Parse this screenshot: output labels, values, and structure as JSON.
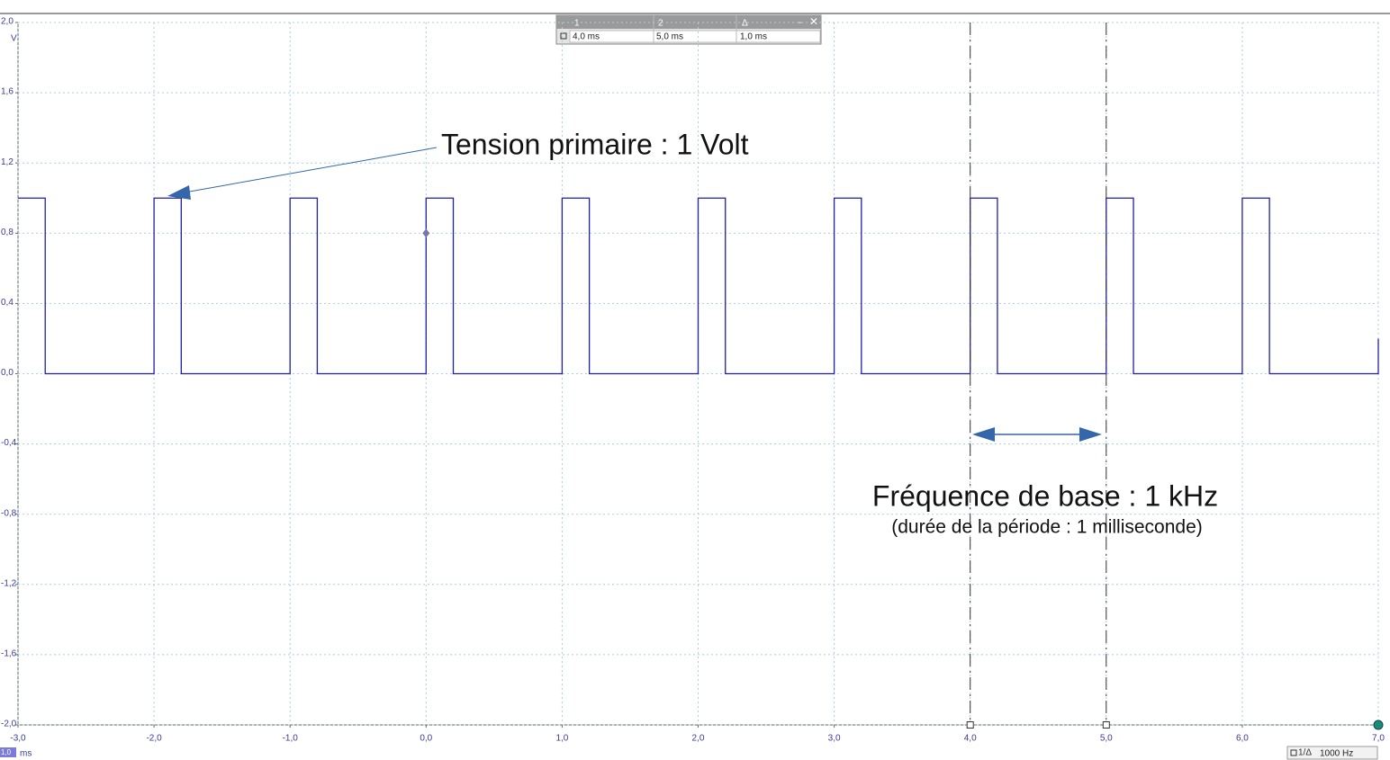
{
  "chart_data": {
    "type": "line",
    "y_unit": "V",
    "x_unit": "ms",
    "timebase": "1,0",
    "x": [
      -3,
      -2.8,
      -2.8,
      -2,
      -2,
      -1.8,
      -1.8,
      -1,
      -1,
      -0.8,
      -0.8,
      0,
      0,
      0.2,
      0.2,
      1,
      1,
      1.2,
      1.2,
      2,
      2,
      2.2,
      2.2,
      3,
      3,
      3.2,
      3.2,
      4,
      4,
      4.2,
      4.2,
      5,
      5,
      5.2,
      5.2,
      6,
      6,
      6.2,
      6.2,
      7,
      7
    ],
    "series": [
      {
        "color": "#1f1fa8",
        "values": [
          1,
          1,
          0,
          0,
          1,
          1,
          0,
          0,
          1,
          1,
          0,
          0,
          1,
          1,
          0,
          0,
          1,
          1,
          0,
          0,
          1,
          1,
          0,
          0,
          1,
          1,
          0,
          0,
          1,
          1,
          0,
          0,
          1,
          1,
          0,
          0,
          1,
          1,
          0,
          0,
          0.2
        ]
      }
    ],
    "xlim": [
      -3,
      7
    ],
    "ylim": [
      -2,
      2
    ],
    "xticks": [
      {
        "value": -3,
        "label": "-3,0"
      },
      {
        "value": -2,
        "label": "-2,0"
      },
      {
        "value": -1,
        "label": "-1,0"
      },
      {
        "value": 0,
        "label": "0,0"
      },
      {
        "value": 1,
        "label": "1,0"
      },
      {
        "value": 2,
        "label": "2,0"
      },
      {
        "value": 3,
        "label": "3,0"
      },
      {
        "value": 4,
        "label": "4,0"
      },
      {
        "value": 5,
        "label": "5,0"
      },
      {
        "value": 6,
        "label": "6,0"
      },
      {
        "value": 7,
        "label": "7,0"
      }
    ],
    "yticks": [
      {
        "value": 2,
        "label": "2,0"
      },
      {
        "value": 1.6,
        "label": "1,6"
      },
      {
        "value": 1.2,
        "label": "1,2"
      },
      {
        "value": 0.8,
        "label": "0,8"
      },
      {
        "value": 0.4,
        "label": "0,4"
      },
      {
        "value": 0,
        "label": "0,0"
      },
      {
        "value": -0.4,
        "label": "-0,4"
      },
      {
        "value": -0.8,
        "label": "-0,8"
      },
      {
        "value": -1.2,
        "label": "-1,2"
      },
      {
        "value": -1.6,
        "label": "-1,6"
      },
      {
        "value": -2,
        "label": "-2,0"
      }
    ],
    "grid": true,
    "cursors": [
      4,
      5
    ],
    "cursor_table": {
      "headers": [
        "1",
        "2",
        "Δ"
      ],
      "values": [
        "4,0 ms",
        "5,0 ms",
        "1,0 ms"
      ]
    },
    "frequency_readout": {
      "label": "1/Δ",
      "value": "1000 Hz"
    },
    "annotations": [
      "Tension primaire : 1 Volt",
      "Fréquence de base : 1 kHz",
      "(durée de la période : 1 milliseconde)"
    ]
  }
}
